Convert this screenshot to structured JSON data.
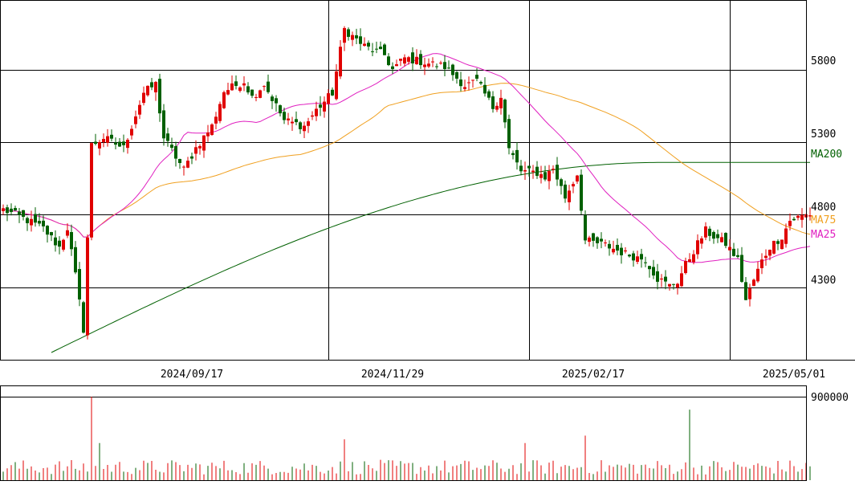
{
  "chart_data": [
    {
      "type": "candlestick",
      "ylim": [
        3800,
        6280
      ],
      "y_ticks": [
        4300,
        4800,
        5300,
        5800
      ],
      "x_tick_labels": [
        "2024/09/17",
        "2024/11/29",
        "2025/02/17",
        "2025/05/01"
      ],
      "x_tick_index": [
        81,
        131,
        181,
        231
      ],
      "grid": true,
      "colors": {
        "up": "#e00000",
        "down": "#006000",
        "ma25": "#e020c0",
        "ma75": "#f0a020",
        "ma200": "#006000"
      },
      "series": [
        {
          "name": "MA200",
          "key": "ma200"
        },
        {
          "name": "MA75",
          "key": "ma75"
        },
        {
          "name": "MA25",
          "key": "ma25"
        }
      ],
      "price_anchors": [
        [
          0,
          4835
        ],
        [
          5,
          4775
        ],
        [
          10,
          4705
        ],
        [
          14,
          4575
        ],
        [
          16,
          4710
        ],
        [
          18,
          4380
        ],
        [
          20,
          4010
        ],
        [
          22,
          5280
        ],
        [
          25,
          5330
        ],
        [
          30,
          5260
        ],
        [
          35,
          5640
        ],
        [
          38,
          5700
        ],
        [
          40,
          5330
        ],
        [
          45,
          5110
        ],
        [
          48,
          5260
        ],
        [
          52,
          5410
        ],
        [
          55,
          5650
        ],
        [
          60,
          5720
        ],
        [
          62,
          5610
        ],
        [
          65,
          5700
        ],
        [
          70,
          5450
        ],
        [
          75,
          5410
        ],
        [
          78,
          5520
        ],
        [
          82,
          5640
        ],
        [
          85,
          6080
        ],
        [
          87,
          6030
        ],
        [
          90,
          5960
        ],
        [
          95,
          5900
        ],
        [
          97,
          5800
        ],
        [
          100,
          5880
        ],
        [
          105,
          5850
        ],
        [
          110,
          5820
        ],
        [
          115,
          5690
        ],
        [
          118,
          5720
        ],
        [
          122,
          5540
        ],
        [
          124,
          5620
        ],
        [
          126,
          5250
        ],
        [
          129,
          5100
        ],
        [
          133,
          5090
        ],
        [
          135,
          5060
        ],
        [
          137,
          5120
        ],
        [
          140,
          4920
        ],
        [
          143,
          5080
        ],
        [
          145,
          4620
        ],
        [
          150,
          4590
        ],
        [
          155,
          4530
        ],
        [
          160,
          4490
        ],
        [
          163,
          4360
        ],
        [
          166,
          4310
        ],
        [
          168,
          4340
        ],
        [
          170,
          4455
        ],
        [
          173,
          4600
        ],
        [
          175,
          4690
        ],
        [
          177,
          4650
        ],
        [
          180,
          4600
        ],
        [
          183,
          4490
        ],
        [
          185,
          4210
        ],
        [
          187,
          4350
        ],
        [
          189,
          4480
        ],
        [
          191,
          4580
        ],
        [
          194,
          4650
        ],
        [
          196,
          4760
        ],
        [
          199,
          4790
        ],
        [
          201,
          4805
        ]
      ],
      "volume_ylim": [
        0,
        900000
      ],
      "volume_tick": 900000,
      "volume_spikes": [
        [
          22,
          900000
        ],
        [
          171,
          760000
        ],
        [
          145,
          480000
        ],
        [
          85,
          440000
        ],
        [
          130,
          400000
        ],
        [
          24,
          400000
        ]
      ]
    }
  ],
  "axis_labels": {
    "y": [
      "4300",
      "4800",
      "5300",
      "5800"
    ],
    "x": [
      "2024/09/17",
      "2024/11/29",
      "2025/02/17",
      "2025/05/01"
    ],
    "volume": [
      "900000"
    ],
    "legend": [
      "MA200",
      "MA75",
      "MA25"
    ]
  }
}
